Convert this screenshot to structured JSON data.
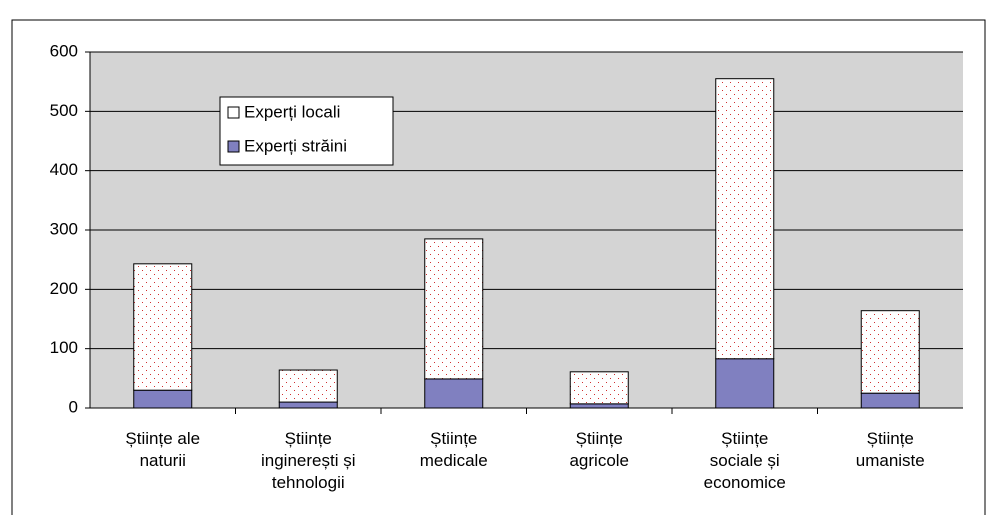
{
  "chart_data": {
    "type": "stacked_bar",
    "categories": [
      "Științe ale naturii",
      "Științe inginerești și tehnologii",
      "Științe medicale",
      "Științe agricole",
      "Științe sociale și economice",
      "Științe umaniste"
    ],
    "series": [
      {
        "name": "Experți străini",
        "color": "#8080c0",
        "values": [
          30,
          10,
          49,
          7,
          83,
          25
        ]
      },
      {
        "name": "Experți locali",
        "color": "#ffffff",
        "values": [
          213,
          54,
          236,
          54,
          472,
          139
        ]
      }
    ],
    "ylim": [
      0,
      600
    ],
    "yticks": [
      0,
      100,
      200,
      300,
      400,
      500,
      600
    ],
    "grid": true
  }
}
